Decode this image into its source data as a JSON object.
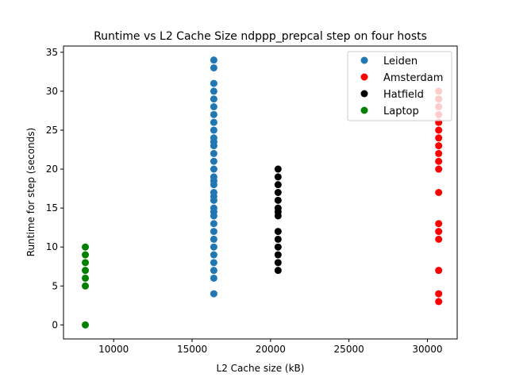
{
  "chart_data": {
    "type": "scatter",
    "title": "Runtime vs L2 Cache Size ndppp_prepcal step on four hosts",
    "xlabel": "L2 Cache size (kB)",
    "ylabel": "Runtime for step (seconds)",
    "xlim": [
      6800,
      31900
    ],
    "ylim": [
      -1.8,
      35.8
    ],
    "xticks": [
      10000,
      15000,
      20000,
      25000,
      30000
    ],
    "yticks": [
      0,
      5,
      10,
      15,
      20,
      25,
      30,
      35
    ],
    "grid": false,
    "legend_position": "top-right",
    "series": [
      {
        "name": "Leiden",
        "color": "#1f77b4",
        "x": 16384,
        "y": [
          4,
          6,
          7,
          8,
          9,
          10,
          11,
          12,
          13,
          14,
          14.5,
          15,
          16,
          16.5,
          17,
          18,
          18.5,
          19,
          20,
          21,
          22,
          23,
          23.5,
          24,
          25,
          26,
          27,
          28,
          29,
          30,
          31,
          33,
          34
        ]
      },
      {
        "name": "Amsterdam",
        "color": "#ff0000",
        "x": 30720,
        "y": [
          3,
          4,
          7,
          11,
          12,
          13,
          17,
          20,
          21,
          22,
          23,
          24,
          25,
          26,
          27,
          28,
          29,
          30
        ]
      },
      {
        "name": "Hatfield",
        "color": "#000000",
        "x": 20480,
        "y": [
          7,
          8,
          9,
          10,
          11,
          12,
          14,
          14.5,
          15,
          16,
          17,
          18,
          19,
          20
        ]
      },
      {
        "name": "Laptop",
        "color": "#008000",
        "x": 8192,
        "y": [
          0,
          5,
          6,
          7,
          8,
          9,
          10
        ]
      }
    ]
  }
}
